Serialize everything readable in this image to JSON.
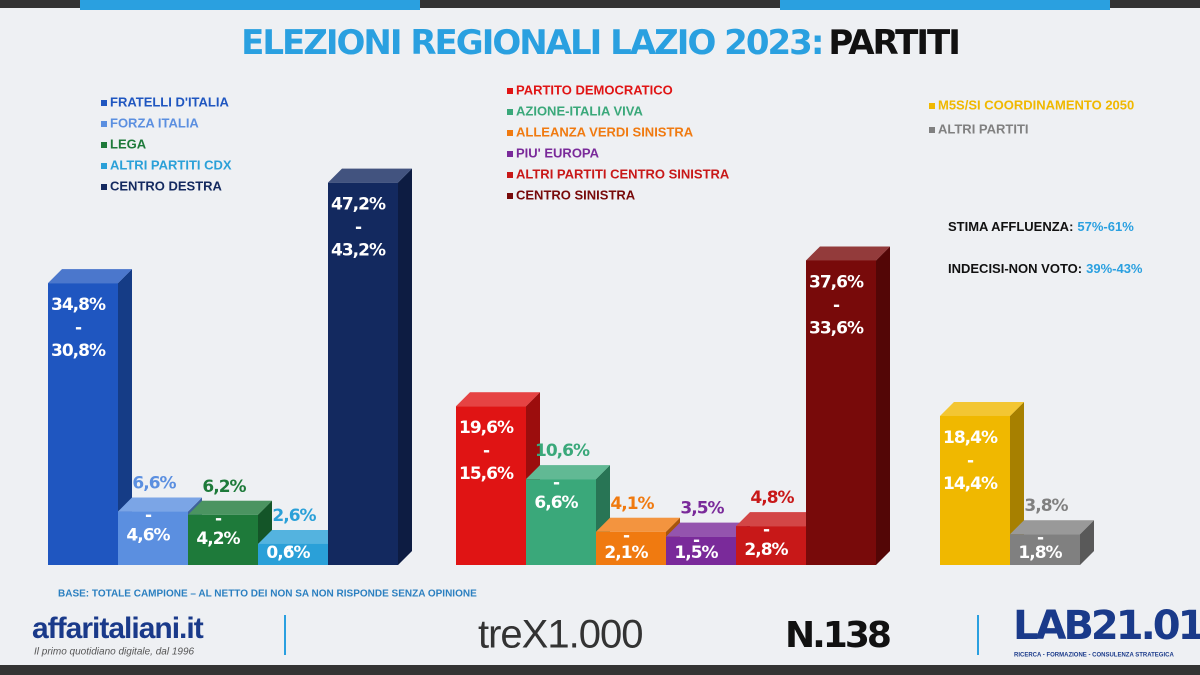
{
  "title": "ELEZIONI REGIONALI LAZIO 2023:",
  "title_highlight": "PARTITI",
  "range_separator": "-",
  "chart_data": [
    {
      "type": "bar",
      "categories": [
        "FRATELLI D'ITALIA",
        "FORZA ITALIA",
        "LEGA",
        "ALTRI PARTITI CDX",
        "CENTRO DESTRA"
      ],
      "colors": [
        "#1f56c0",
        "#5b8fe0",
        "#1e7a3a",
        "#2aa0d8",
        "#13295f"
      ],
      "values": [
        34.8,
        6.6,
        6.2,
        2.6,
        47.2
      ],
      "value_labels": [
        "34,8%",
        "6,6%",
        "6,2%",
        "2,6%",
        "47,2%"
      ],
      "low_values": [
        30.8,
        4.6,
        4.2,
        0.6,
        43.2
      ],
      "low_value_labels": [
        "30,8%",
        "4,6%",
        "4,2%",
        "0,6%",
        "43,2%"
      ]
    },
    {
      "type": "bar",
      "categories": [
        "PARTITO DEMOCRATICO",
        "AZIONE-ITALIA VIVA",
        "ALLEANZA VERDI SINISTRA",
        "PIU' EUROPA",
        "ALTRI PARTITI CENTRO SINISTRA",
        "CENTRO SINISTRA"
      ],
      "colors": [
        "#e01414",
        "#3aa87a",
        "#f07a10",
        "#7a2a9a",
        "#c81818",
        "#780a0a"
      ],
      "values": [
        19.6,
        10.6,
        4.1,
        3.5,
        4.8,
        37.6
      ],
      "value_labels": [
        "19,6%",
        "10,6%",
        "4,1%",
        "3,5%",
        "4,8%",
        "37,6%"
      ],
      "low_values": [
        15.6,
        6.6,
        2.1,
        1.5,
        2.8,
        33.6
      ],
      "low_value_labels": [
        "15,6%",
        "6,6%",
        "2,1%",
        "1,5%",
        "2,8%",
        "33,6%"
      ]
    },
    {
      "type": "bar",
      "categories": [
        "M5S/SI COORDINAMENTO 2050",
        "ALTRI PARTITI"
      ],
      "colors": [
        "#f0b800",
        "#808080"
      ],
      "values": [
        18.4,
        3.8
      ],
      "value_labels": [
        "18,4%",
        "3,8%"
      ],
      "low_values": [
        14.4,
        1.8
      ],
      "low_value_labels": [
        "14,4%",
        "1,8%"
      ]
    }
  ],
  "turnout_label": "STIMA AFFLUENZA:",
  "turnout_value": "57%-61%",
  "undecided_label": "INDECISI-NON VOTO:",
  "undecided_value": "39%-43%",
  "base_note": "BASE: TOTALE CAMPIONE – AL NETTO DEI NON SA NON RISPONDE SENZA OPINIONE",
  "footer": {
    "brand": "affaritaliani.it",
    "brand_tagline": "Il primo quotidiano digitale, dal 1996",
    "partner": "treX1.000",
    "issue": "N.138",
    "lab": "LAB21.01",
    "lab_tagline": "RICERCA - FORMAZIONE - CONSULENZA STRATEGICA"
  }
}
